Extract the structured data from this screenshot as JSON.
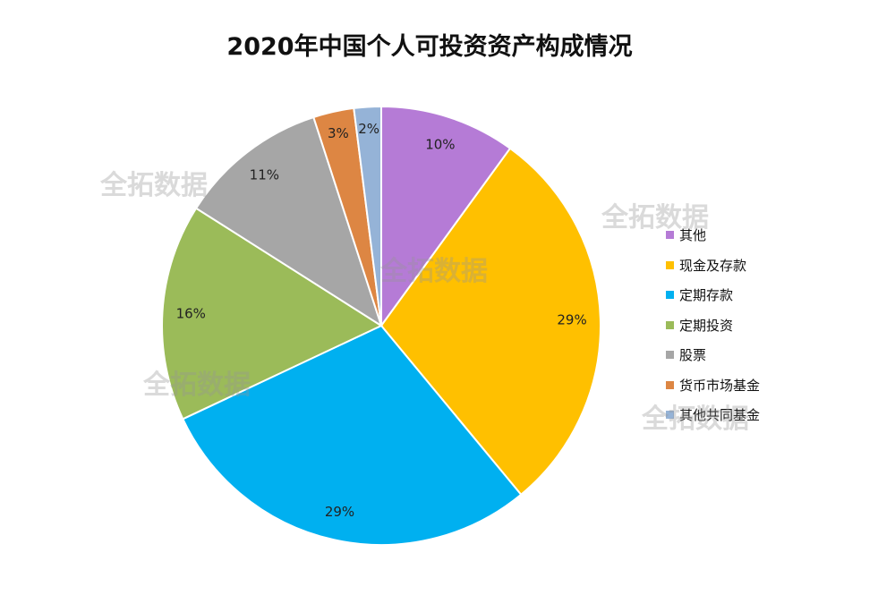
{
  "chart_data": {
    "type": "pie",
    "title": "2020年中国个人可投资资产构成情况",
    "start_angle": "12 o'clock, clockwise",
    "slices": [
      {
        "label": "其他",
        "value": 10,
        "value_label": "10%",
        "color": "#B57BD6"
      },
      {
        "label": "现金及存款",
        "value": 29,
        "value_label": "29%",
        "color": "#FFC000"
      },
      {
        "label": "定期存款",
        "value": 29,
        "value_label": "29%",
        "color": "#00B0F0"
      },
      {
        "label": "定期投资",
        "value": 16,
        "value_label": "16%",
        "color": "#9BBB59"
      },
      {
        "label": "股票",
        "value": 11,
        "value_label": "11%",
        "color": "#A6A6A6"
      },
      {
        "label": "货币市场基金",
        "value": 3,
        "value_label": "3%",
        "color": "#DD8643"
      },
      {
        "label": "其他共同基金",
        "value": 2,
        "value_label": "2%",
        "color": "#95B3D7"
      }
    ],
    "legend_position": "right"
  },
  "watermark_text": "全拓数据"
}
